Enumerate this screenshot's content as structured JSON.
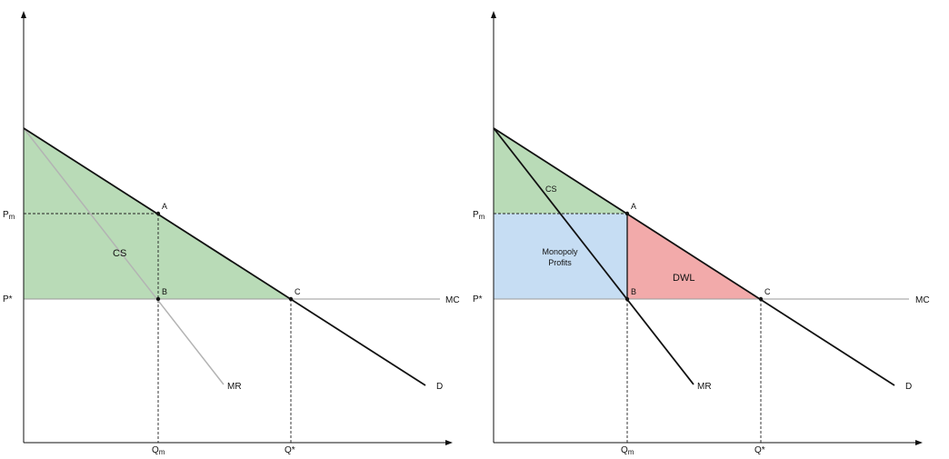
{
  "colors": {
    "consumer_surplus": "#b9dbb7",
    "monopoly_profits": "#c6ddf3",
    "deadweight_loss": "#f2aaaa",
    "demand_line": "#111111",
    "mr_left": "#b3b3b3",
    "mr_right": "#111111",
    "mc_line": "#9a9a9a",
    "axis": "#111111",
    "guide": "#222222"
  },
  "icons": [
    "y-axis-arrow-icon",
    "x-axis-arrow-icon"
  ],
  "panels": [
    {
      "point_labels": {
        "a": "A",
        "b": "B",
        "c": "C"
      },
      "axis_labels": {
        "pm": "Pm",
        "pm_main": "P",
        "pm_sub": "m",
        "pstar": "P*",
        "qm_main": "Q",
        "qm_sub": "m",
        "qstar": "Q*"
      },
      "curve_labels": {
        "mc": "MC",
        "mr": "MR",
        "d": "D"
      },
      "region_labels": {
        "cs": "CS"
      }
    },
    {
      "point_labels": {
        "a": "A",
        "b": "B",
        "c": "C"
      },
      "axis_labels": {
        "pm": "Pm",
        "pm_main": "P",
        "pm_sub": "m",
        "pstar": "P*",
        "qm_main": "Q",
        "qm_sub": "m",
        "qstar": "Q*"
      },
      "curve_labels": {
        "mc": "MC",
        "mr": "MR",
        "d": "D"
      },
      "region_labels": {
        "cs": "CS",
        "monopoly_line1": "Monopoly",
        "monopoly_line2": "Profits",
        "dwl": "DWL"
      }
    }
  ]
}
